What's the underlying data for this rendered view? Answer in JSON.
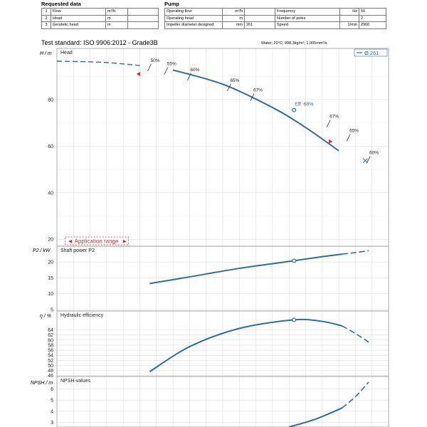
{
  "requested": {
    "title": "Requested data",
    "rows": [
      {
        "num": "1",
        "label": "Flow",
        "unit": "m³/h",
        "value": ""
      },
      {
        "num": "2",
        "label": "Head",
        "unit": "m",
        "value": ""
      },
      {
        "num": "3",
        "label": "Geodetic head",
        "unit": "m",
        "value": ""
      }
    ]
  },
  "pump": {
    "title": "Pump",
    "rows": [
      {
        "label": "Operating flow",
        "unit": "m³/h",
        "value": "",
        "label2": "Frequency",
        "unit2": "Hz",
        "value2": "50"
      },
      {
        "label": "Operating head",
        "unit": "m",
        "value": "",
        "label2": "Number of poles",
        "unit2": "",
        "value2": "2"
      },
      {
        "label": "Impeller diameter designed",
        "unit": "mm",
        "value": "261",
        "label2": "Speed",
        "unit2": "1/min",
        "value2": "2900"
      }
    ]
  },
  "test_standard": "Test standard: ISO 9906:2012 - Grade3B",
  "water_info": "Water; 20°C; 998.3kg/m³; 1.005mm²/s",
  "chart_data": [
    {
      "type": "line",
      "title": "Head",
      "ylabel": "H / m",
      "yticks": [
        20,
        40,
        60,
        80
      ],
      "ylim": [
        17,
        102
      ],
      "xlim": [
        0,
        100
      ],
      "grid": true,
      "legend": "top-right",
      "series": [
        {
          "name": "Ø 261",
          "x": [
            0,
            14,
            25,
            35,
            50,
            65,
            75,
            85,
            93
          ],
          "y": [
            96.5,
            96.0,
            94.6,
            92.7,
            86.6,
            76.6,
            68.0,
            58.0,
            53.8
          ]
        }
      ],
      "efficiency_marks": [
        {
          "label": "50%",
          "x": 28,
          "y": 93.8
        },
        {
          "label": "55%",
          "x": 33,
          "y": 92.3
        },
        {
          "label": "60%",
          "x": 40,
          "y": 89.8
        },
        {
          "label": "65%",
          "x": 52,
          "y": 85.2
        },
        {
          "label": "67%",
          "x": 59,
          "y": 81.0
        },
        {
          "label": "67%",
          "x": 82,
          "y": 69.7
        },
        {
          "label": "65%",
          "x": 88,
          "y": 63.6
        },
        {
          "label": "60%",
          "x": 94,
          "y": 54.1
        }
      ],
      "duty_point": {
        "x": 71.5,
        "y": 75.5,
        "label": "Eff. 68%"
      },
      "application_range": {
        "label": "Application range",
        "x_start": 28,
        "x_end": 86
      }
    },
    {
      "type": "line",
      "title": "Shaft power P2",
      "ylabel": "P2 / kW",
      "yticks": [
        5,
        10,
        15,
        20
      ],
      "ylim": [
        4.5,
        25
      ],
      "series": [
        {
          "name": "Ø 261",
          "x": [
            28,
            40,
            55,
            71.5,
            80,
            86,
            90,
            94
          ],
          "y": [
            13.2,
            15.3,
            18.0,
            20.4,
            21.7,
            22.5,
            23.0,
            23.6
          ]
        }
      ],
      "duty_point": {
        "x": 71.5,
        "y": 20.4
      }
    },
    {
      "type": "line",
      "title": "Hydraulic efficiency",
      "ylabel": "η / %",
      "yticks": [
        46,
        48,
        50,
        52,
        54,
        56,
        58,
        60,
        62,
        64
      ],
      "ylim": [
        45.6,
        71.5
      ],
      "series": [
        {
          "name": "Ø 261",
          "x": [
            28,
            40,
            55,
            71.5,
            80,
            86,
            90,
            94
          ],
          "y": [
            47.5,
            57.4,
            64.6,
            68.0,
            67.4,
            65.6,
            62.6,
            59.2
          ]
        }
      ],
      "duty_point": {
        "x": 71.5,
        "y": 68.0
      }
    },
    {
      "type": "line",
      "title": "NPSH-values",
      "ylabel": "NPSH / m",
      "yticks": [
        3,
        4,
        5,
        6
      ],
      "ylim": [
        2.6,
        7.1
      ],
      "series": [
        {
          "name": "Ø 261",
          "x": [
            70,
            78,
            86,
            90,
            94
          ],
          "y": [
            2.6,
            3.3,
            4.3,
            5.3,
            6.6
          ]
        }
      ]
    }
  ]
}
